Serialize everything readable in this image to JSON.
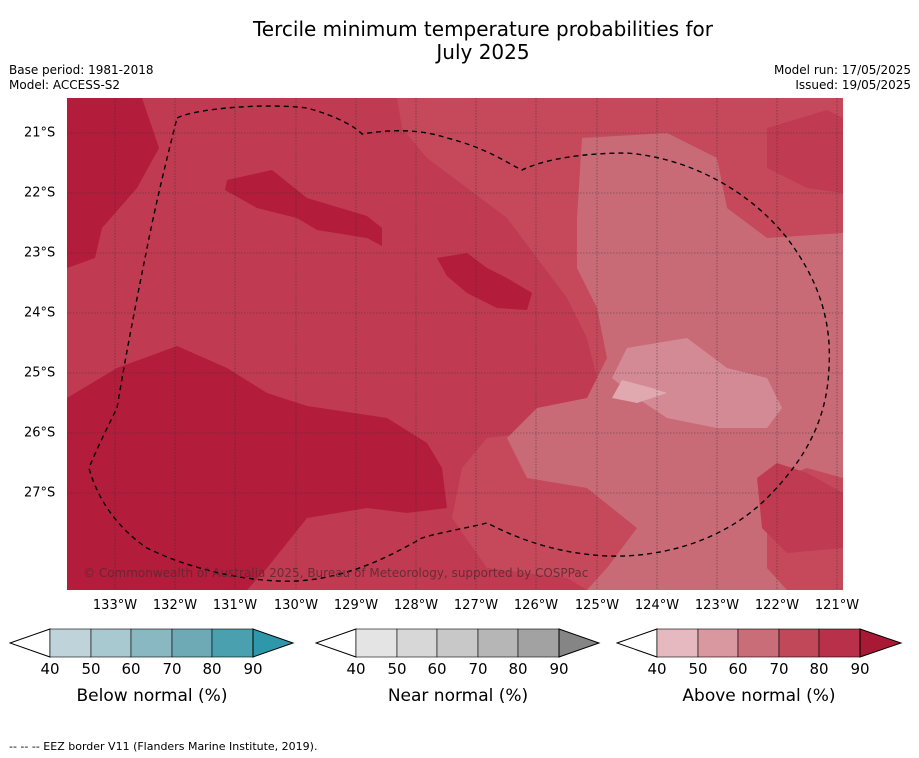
{
  "title_line1": "Tercile minimum temperature probabilities for",
  "title_line2": "July 2025",
  "meta_left": {
    "base_period": "Base period: 1981-2018",
    "model": "Model: ACCESS-S2"
  },
  "meta_right": {
    "model_run": "Model run: 17/05/2025",
    "issued": "Issued: 19/05/2025"
  },
  "map": {
    "lat_labels": [
      "21°S",
      "22°S",
      "23°S",
      "24°S",
      "25°S",
      "26°S",
      "27°S"
    ],
    "lon_labels": [
      "133°W",
      "132°W",
      "131°W",
      "130°W",
      "129°W",
      "128°W",
      "127°W",
      "126°W",
      "125°W",
      "124°W",
      "123°W",
      "122°W",
      "121°W"
    ],
    "copyright": "© Commonwealth of Australia 2025, Bureau of Meteorology, supported by COSPPac",
    "colors": {
      "above_70_80": "#c04858",
      "above_80_90": "#b51f3a",
      "above_60_70": "#c96d79",
      "above_50_60": "#d9979f"
    }
  },
  "legends": [
    {
      "title": "Below normal (%)",
      "ticks": [
        "40",
        "50",
        "60",
        "70",
        "80",
        "90"
      ],
      "colors": [
        "#bed4da",
        "#a8c9cf",
        "#8ab8c2",
        "#6eaab6",
        "#4ba0b0",
        "#2e98aa"
      ]
    },
    {
      "title": "Near normal (%)",
      "ticks": [
        "40",
        "50",
        "60",
        "70",
        "80",
        "90"
      ],
      "colors": [
        "#e4e4e4",
        "#d7d7d7",
        "#c8c8c8",
        "#b6b6b6",
        "#a2a2a2",
        "#858585"
      ]
    },
    {
      "title": "Above normal (%)",
      "ticks": [
        "40",
        "50",
        "60",
        "70",
        "80",
        "90"
      ],
      "colors": [
        "#e5b9bf",
        "#d9979f",
        "#c96d79",
        "#c04858",
        "#b8304a",
        "#a81935"
      ]
    }
  ],
  "footnote": "-- -- -- EEZ border V11 (Flanders Marine Institute, 2019)."
}
